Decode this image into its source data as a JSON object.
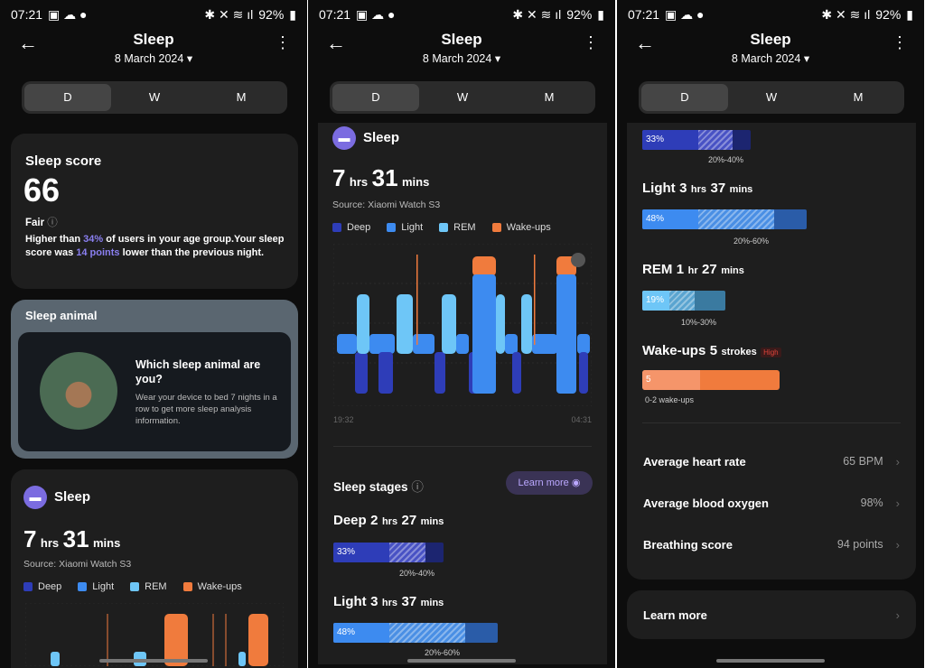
{
  "status": {
    "time": "07:21",
    "battery": "92%"
  },
  "header": {
    "title": "Sleep",
    "date": "8 March 2024"
  },
  "tabs": [
    "D",
    "W",
    "M"
  ],
  "score": {
    "title": "Sleep score",
    "value": "66",
    "rating": "Fair",
    "desc_a": "Higher than ",
    "pct": "34%",
    "desc_b": " of users in your age group.Your sleep score was ",
    "points": "14 points",
    "desc_c": " lower than the previous night."
  },
  "animal": {
    "title": "Sleep animal",
    "q": "Which sleep animal are you?",
    "desc": "Wear your device to bed 7 nights in a row to get more sleep analysis information."
  },
  "sleep": {
    "title": "Sleep",
    "hrs": "7",
    "hrs_u": "hrs",
    "mins": "31",
    "mins_u": "mins",
    "source": "Source: Xiaomi Watch S3",
    "start": "19:32",
    "end": "04:31"
  },
  "legend": [
    {
      "name": "Deep",
      "color": "#2e3db8"
    },
    {
      "name": "Light",
      "color": "#3d8bf0"
    },
    {
      "name": "REM",
      "color": "#6ec6f7"
    },
    {
      "name": "Wake-ups",
      "color": "#f07b3d"
    }
  ],
  "stages": {
    "title": "Sleep stages",
    "learn": "Learn more",
    "deep": {
      "label": "Deep",
      "h": "2",
      "hu": "hrs",
      "m": "27",
      "mu": "mins",
      "pct": "33%",
      "range": "20%-40%"
    },
    "light": {
      "label": "Light",
      "h": "3",
      "hu": "hrs",
      "m": "37",
      "mu": "mins",
      "pct": "48%",
      "range": "20%-60%"
    },
    "rem": {
      "label": "REM",
      "h": "1",
      "hu": "hr",
      "m": "27",
      "mu": "mins",
      "pct": "19%",
      "range": "10%-30%"
    },
    "wake": {
      "label": "Wake-ups",
      "v": "5",
      "u": "strokes",
      "badge": "High",
      "count": "5",
      "range": "0-2 wake-ups"
    }
  },
  "metrics": [
    {
      "name": "Average heart rate",
      "value": "65 BPM"
    },
    {
      "name": "Average blood oxygen",
      "value": "98%"
    },
    {
      "name": "Breathing score",
      "value": "94 points"
    }
  ],
  "learn_more": "Learn more"
}
